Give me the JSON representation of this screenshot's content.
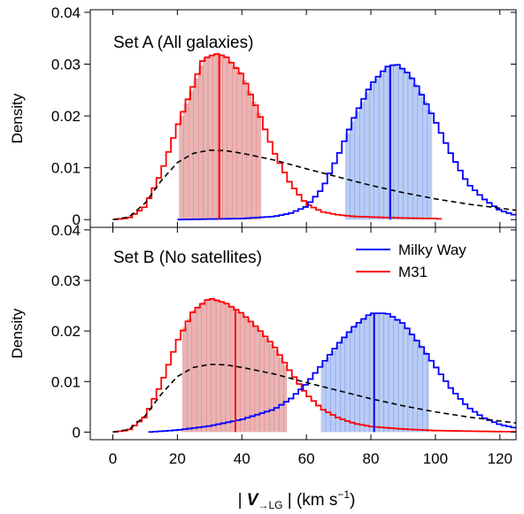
{
  "chart_data": {
    "type": "line",
    "xlabel": {
      "prefix": "| ",
      "bold": "V",
      "subscript": "→LG",
      "middle": " | (km s",
      "superscript": "−1",
      "suffix": ")"
    },
    "ylabel": "Density",
    "xlim": [
      -7,
      125
    ],
    "ylim": [
      -0.0015,
      0.0405
    ],
    "xticks": [
      "0",
      "20",
      "40",
      "60",
      "80",
      "100",
      "120"
    ],
    "yticks": [
      "0",
      "0.01",
      "0.02",
      "0.03",
      "0.04"
    ],
    "colors": {
      "milky_way": "#0000ff",
      "m31": "#ff0000",
      "mw_fill": "#b9cdf3",
      "m31_fill": "#e8b4b4",
      "reference": "#000000"
    },
    "legend": {
      "location": "upper-right of lower panel",
      "entries": [
        "Milky Way",
        "M31"
      ]
    },
    "panels": [
      {
        "title": "Set A (All galaxies)",
        "m31": {
          "x": [
            0,
            5,
            10,
            15,
            20,
            25,
            28,
            32,
            35,
            40,
            45,
            50,
            55,
            60,
            65,
            70,
            75,
            80,
            90,
            100,
            102
          ],
          "y": [
            0.0,
            0.0003,
            0.0025,
            0.009,
            0.018,
            0.026,
            0.031,
            0.032,
            0.0315,
            0.028,
            0.021,
            0.013,
            0.007,
            0.003,
            0.0015,
            0.0009,
            0.0006,
            0.0005,
            0.0003,
            0.0002,
            0.0001
          ],
          "shade_range": [
            20.5,
            46
          ],
          "peak": 33
        },
        "milky_way": {
          "x": [
            20,
            40,
            50,
            55,
            60,
            65,
            70,
            75,
            80,
            85,
            88,
            92,
            95,
            100,
            105,
            110,
            115,
            120,
            125
          ],
          "y": [
            0.0,
            0.0002,
            0.0006,
            0.0012,
            0.0025,
            0.006,
            0.0125,
            0.02,
            0.026,
            0.0295,
            0.03,
            0.028,
            0.025,
            0.019,
            0.0125,
            0.007,
            0.004,
            0.0018,
            0.0008
          ],
          "shade_range": [
            72,
            99
          ],
          "peak": 86
        },
        "reference": {
          "x": [
            0,
            5,
            10,
            15,
            20,
            25,
            30,
            35,
            40,
            50,
            60,
            70,
            80,
            90,
            100,
            110,
            120,
            125
          ],
          "y": [
            0.0,
            0.0005,
            0.0032,
            0.0075,
            0.011,
            0.0128,
            0.0134,
            0.0133,
            0.0128,
            0.0115,
            0.0098,
            0.0082,
            0.0066,
            0.0052,
            0.004,
            0.003,
            0.0022,
            0.0018
          ]
        }
      },
      {
        "title": "Set B (No satellites)",
        "m31": {
          "x": [
            0,
            5,
            10,
            15,
            20,
            25,
            30,
            35,
            40,
            45,
            50,
            55,
            60,
            65,
            70,
            75,
            80,
            90,
            100,
            110,
            120,
            125
          ],
          "y": [
            0.0,
            0.0004,
            0.003,
            0.0095,
            0.018,
            0.024,
            0.0265,
            0.0255,
            0.0235,
            0.0205,
            0.017,
            0.012,
            0.0075,
            0.0045,
            0.0028,
            0.0017,
            0.0011,
            0.0006,
            0.0003,
            0.0002,
            0.0001,
            0.0001
          ],
          "shade_range": [
            21.5,
            54
          ],
          "peak": 38
        },
        "milky_way": {
          "x": [
            11,
            20,
            30,
            40,
            50,
            55,
            60,
            65,
            70,
            75,
            80,
            85,
            90,
            95,
            100,
            105,
            110,
            115,
            120,
            125
          ],
          "y": [
            0.0,
            0.0004,
            0.0012,
            0.0025,
            0.0045,
            0.0065,
            0.0095,
            0.0135,
            0.0175,
            0.021,
            0.0235,
            0.0235,
            0.0215,
            0.0175,
            0.013,
            0.0085,
            0.005,
            0.0028,
            0.0015,
            0.0008
          ],
          "shade_range": [
            64.5,
            98
          ],
          "peak": 81
        },
        "reference": {
          "x": [
            0,
            5,
            10,
            15,
            20,
            25,
            30,
            35,
            40,
            50,
            60,
            70,
            80,
            90,
            100,
            110,
            120,
            125
          ],
          "y": [
            0.0,
            0.0005,
            0.0032,
            0.0075,
            0.011,
            0.0128,
            0.0134,
            0.0133,
            0.0128,
            0.0115,
            0.0098,
            0.0082,
            0.0066,
            0.0052,
            0.004,
            0.003,
            0.0022,
            0.0018
          ]
        }
      }
    ]
  }
}
